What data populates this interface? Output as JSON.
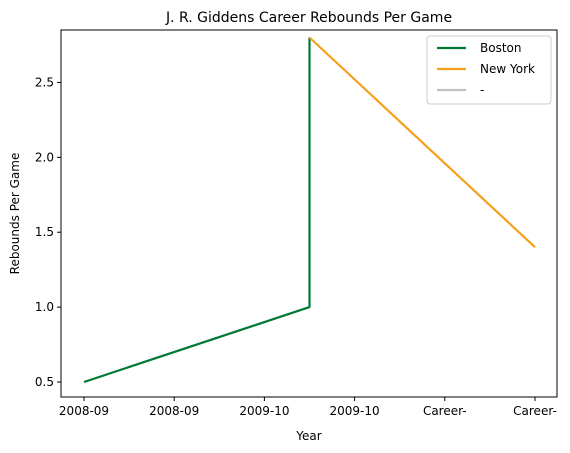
{
  "chart_data": {
    "type": "line",
    "title": "J. R. Giddens Career Rebounds Per Game",
    "xlabel": "Year",
    "ylabel": "Rebounds Per Game",
    "x_ticks": [
      "2008-09",
      "2008-09",
      "2009-10",
      "2009-10",
      "Career-",
      "Career-"
    ],
    "ylim": [
      0.4,
      2.85
    ],
    "y_ticks": [
      0.5,
      1.0,
      1.5,
      2.0,
      2.5
    ],
    "grid": false,
    "legend_position": "top-right",
    "series": [
      {
        "name": "Boston",
        "color": "#007a33",
        "points": [
          [
            0,
            0.5
          ],
          [
            2.5,
            1.0
          ],
          [
            2.5,
            2.8
          ]
        ]
      },
      {
        "name": "New York",
        "color": "#f5a01a",
        "points": [
          [
            2.5,
            2.8
          ],
          [
            5,
            1.4
          ]
        ]
      },
      {
        "name": "-",
        "color": "#c0c0c0",
        "points": []
      }
    ]
  }
}
